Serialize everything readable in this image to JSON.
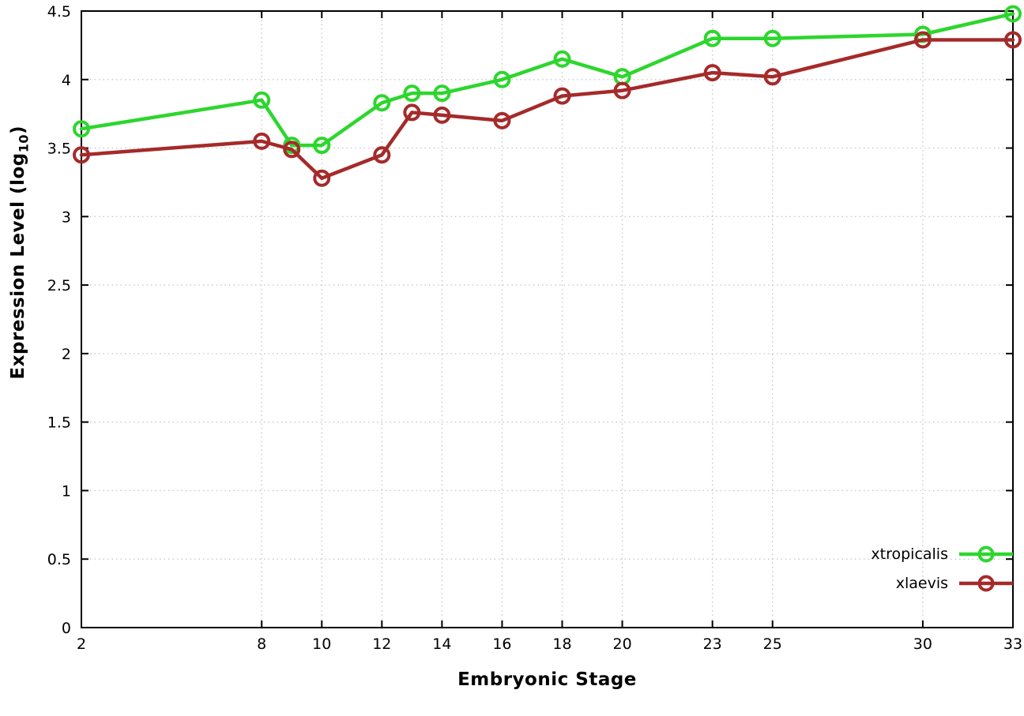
{
  "chart_data": {
    "type": "line",
    "x": [
      2,
      8,
      9,
      10,
      12,
      13,
      14,
      16,
      18,
      20,
      23,
      25,
      30,
      33
    ],
    "series": [
      {
        "name": "xtropicalis",
        "color": "#2dd62d",
        "values": [
          3.64,
          3.85,
          3.52,
          3.52,
          3.83,
          3.9,
          3.9,
          4.0,
          4.15,
          4.02,
          4.3,
          4.3,
          4.33,
          4.48
        ]
      },
      {
        "name": "xlaevis",
        "color": "#a52a2a",
        "values": [
          3.45,
          3.55,
          3.49,
          3.28,
          3.45,
          3.76,
          3.74,
          3.7,
          3.88,
          3.92,
          4.05,
          4.02,
          4.29,
          4.29
        ]
      }
    ],
    "xlabel": "Embryonic Stage",
    "ylabel": {
      "prefix": "Expression Level (log",
      "sub": "10",
      "suffix": ")"
    },
    "xlim": [
      2,
      33
    ],
    "ylim": [
      0,
      4.5
    ],
    "xticks": [
      2,
      8,
      10,
      12,
      14,
      16,
      18,
      20,
      23,
      25,
      30,
      33
    ],
    "yticks": [
      0,
      0.5,
      1,
      1.5,
      2,
      2.5,
      3,
      3.5,
      4,
      4.5
    ],
    "grid": true,
    "legend_position": "bottom-right-inside",
    "marker": "open-circle",
    "background": "#ffffff",
    "grid_color": "#c8c8c8",
    "axis_color": "#000000",
    "tick_label_color": "#000000"
  }
}
